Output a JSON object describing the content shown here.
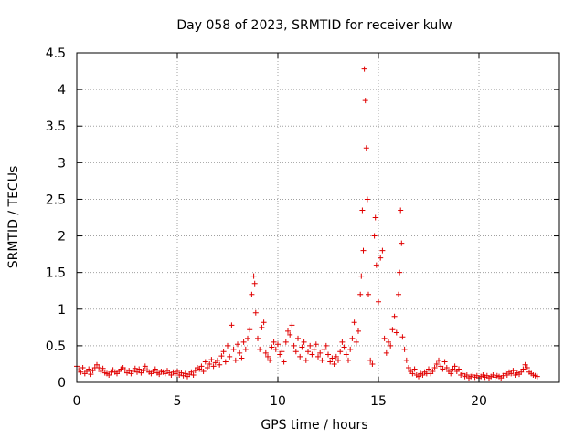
{
  "chart_data": {
    "type": "scatter",
    "title": "Day 058 of 2023, SRMTID for receiver kulw",
    "xlabel": "GPS time / hours",
    "ylabel": "SRMTID / TECUs",
    "xlim": [
      0,
      24
    ],
    "ylim": [
      0,
      4.5
    ],
    "xticks": [
      0,
      5,
      10,
      15,
      20
    ],
    "yticks": [
      0,
      0.5,
      1,
      1.5,
      2,
      2.5,
      3,
      3.5,
      4,
      4.5
    ],
    "grid": true,
    "marker": "+",
    "color": "#e00000",
    "series": [
      {
        "name": "kulw",
        "points": [
          [
            0.0,
            0.22
          ],
          [
            0.1,
            0.17
          ],
          [
            0.2,
            0.14
          ],
          [
            0.3,
            0.2
          ],
          [
            0.4,
            0.12
          ],
          [
            0.5,
            0.15
          ],
          [
            0.6,
            0.18
          ],
          [
            0.7,
            0.11
          ],
          [
            0.8,
            0.16
          ],
          [
            0.9,
            0.2
          ],
          [
            1.0,
            0.24
          ],
          [
            1.1,
            0.2
          ],
          [
            1.2,
            0.15
          ],
          [
            1.3,
            0.19
          ],
          [
            1.4,
            0.13
          ],
          [
            1.5,
            0.12
          ],
          [
            1.6,
            0.1
          ],
          [
            1.7,
            0.14
          ],
          [
            1.8,
            0.17
          ],
          [
            1.9,
            0.14
          ],
          [
            2.0,
            0.12
          ],
          [
            2.1,
            0.15
          ],
          [
            2.2,
            0.18
          ],
          [
            2.3,
            0.2
          ],
          [
            2.4,
            0.17
          ],
          [
            2.5,
            0.13
          ],
          [
            2.6,
            0.16
          ],
          [
            2.7,
            0.12
          ],
          [
            2.8,
            0.15
          ],
          [
            2.9,
            0.19
          ],
          [
            3.0,
            0.14
          ],
          [
            3.1,
            0.18
          ],
          [
            3.2,
            0.13
          ],
          [
            3.3,
            0.16
          ],
          [
            3.4,
            0.22
          ],
          [
            3.5,
            0.17
          ],
          [
            3.6,
            0.14
          ],
          [
            3.7,
            0.12
          ],
          [
            3.8,
            0.15
          ],
          [
            3.9,
            0.18
          ],
          [
            4.0,
            0.13
          ],
          [
            4.1,
            0.11
          ],
          [
            4.2,
            0.15
          ],
          [
            4.3,
            0.14
          ],
          [
            4.4,
            0.12
          ],
          [
            4.5,
            0.16
          ],
          [
            4.6,
            0.13
          ],
          [
            4.7,
            0.1
          ],
          [
            4.8,
            0.14
          ],
          [
            4.9,
            0.12
          ],
          [
            5.0,
            0.15
          ],
          [
            5.1,
            0.1
          ],
          [
            5.2,
            0.13
          ],
          [
            5.3,
            0.09
          ],
          [
            5.4,
            0.12
          ],
          [
            5.5,
            0.08
          ],
          [
            5.6,
            0.11
          ],
          [
            5.7,
            0.14
          ],
          [
            5.8,
            0.1
          ],
          [
            5.9,
            0.16
          ],
          [
            6.0,
            0.2
          ],
          [
            6.1,
            0.18
          ],
          [
            6.2,
            0.22
          ],
          [
            6.3,
            0.15
          ],
          [
            6.4,
            0.28
          ],
          [
            6.5,
            0.2
          ],
          [
            6.6,
            0.25
          ],
          [
            6.7,
            0.31
          ],
          [
            6.8,
            0.22
          ],
          [
            6.9,
            0.27
          ],
          [
            7.0,
            0.3
          ],
          [
            7.1,
            0.24
          ],
          [
            7.2,
            0.36
          ],
          [
            7.3,
            0.42
          ],
          [
            7.4,
            0.28
          ],
          [
            7.5,
            0.5
          ],
          [
            7.6,
            0.35
          ],
          [
            7.7,
            0.78
          ],
          [
            7.8,
            0.45
          ],
          [
            7.9,
            0.3
          ],
          [
            8.0,
            0.52
          ],
          [
            8.1,
            0.4
          ],
          [
            8.2,
            0.33
          ],
          [
            8.3,
            0.55
          ],
          [
            8.4,
            0.45
          ],
          [
            8.5,
            0.6
          ],
          [
            8.6,
            0.72
          ],
          [
            8.7,
            1.2
          ],
          [
            8.8,
            1.45
          ],
          [
            8.85,
            1.35
          ],
          [
            8.9,
            0.95
          ],
          [
            9.0,
            0.6
          ],
          [
            9.1,
            0.45
          ],
          [
            9.2,
            0.75
          ],
          [
            9.3,
            0.82
          ],
          [
            9.4,
            0.4
          ],
          [
            9.5,
            0.35
          ],
          [
            9.6,
            0.3
          ],
          [
            9.7,
            0.48
          ],
          [
            9.8,
            0.55
          ],
          [
            9.9,
            0.45
          ],
          [
            10.0,
            0.52
          ],
          [
            10.1,
            0.38
          ],
          [
            10.2,
            0.42
          ],
          [
            10.3,
            0.28
          ],
          [
            10.4,
            0.55
          ],
          [
            10.5,
            0.7
          ],
          [
            10.6,
            0.65
          ],
          [
            10.7,
            0.78
          ],
          [
            10.8,
            0.5
          ],
          [
            10.9,
            0.42
          ],
          [
            11.0,
            0.6
          ],
          [
            11.1,
            0.35
          ],
          [
            11.2,
            0.48
          ],
          [
            11.3,
            0.55
          ],
          [
            11.4,
            0.3
          ],
          [
            11.5,
            0.42
          ],
          [
            11.6,
            0.5
          ],
          [
            11.7,
            0.38
          ],
          [
            11.8,
            0.45
          ],
          [
            11.9,
            0.52
          ],
          [
            12.0,
            0.35
          ],
          [
            12.1,
            0.4
          ],
          [
            12.2,
            0.3
          ],
          [
            12.3,
            0.45
          ],
          [
            12.4,
            0.5
          ],
          [
            12.5,
            0.38
          ],
          [
            12.6,
            0.28
          ],
          [
            12.7,
            0.33
          ],
          [
            12.8,
            0.25
          ],
          [
            12.9,
            0.35
          ],
          [
            13.0,
            0.3
          ],
          [
            13.1,
            0.42
          ],
          [
            13.2,
            0.55
          ],
          [
            13.3,
            0.48
          ],
          [
            13.4,
            0.38
          ],
          [
            13.5,
            0.3
          ],
          [
            13.6,
            0.45
          ],
          [
            13.7,
            0.6
          ],
          [
            13.8,
            0.82
          ],
          [
            13.9,
            0.55
          ],
          [
            14.0,
            0.7
          ],
          [
            14.1,
            1.2
          ],
          [
            14.15,
            1.45
          ],
          [
            14.2,
            2.35
          ],
          [
            14.25,
            1.8
          ],
          [
            14.3,
            4.28
          ],
          [
            14.35,
            3.85
          ],
          [
            14.4,
            3.2
          ],
          [
            14.45,
            2.5
          ],
          [
            14.5,
            1.2
          ],
          [
            14.6,
            0.3
          ],
          [
            14.7,
            0.25
          ],
          [
            14.8,
            2.0
          ],
          [
            14.85,
            2.25
          ],
          [
            14.9,
            1.6
          ],
          [
            15.0,
            1.1
          ],
          [
            15.1,
            1.7
          ],
          [
            15.2,
            1.8
          ],
          [
            15.3,
            0.6
          ],
          [
            15.4,
            0.4
          ],
          [
            15.5,
            0.55
          ],
          [
            15.6,
            0.5
          ],
          [
            15.7,
            0.72
          ],
          [
            15.8,
            0.9
          ],
          [
            15.9,
            0.68
          ],
          [
            16.0,
            1.2
          ],
          [
            16.05,
            1.5
          ],
          [
            16.1,
            2.35
          ],
          [
            16.15,
            1.9
          ],
          [
            16.2,
            0.62
          ],
          [
            16.3,
            0.45
          ],
          [
            16.4,
            0.3
          ],
          [
            16.5,
            0.2
          ],
          [
            16.6,
            0.15
          ],
          [
            16.7,
            0.12
          ],
          [
            16.8,
            0.18
          ],
          [
            16.9,
            0.1
          ],
          [
            17.0,
            0.08
          ],
          [
            17.1,
            0.12
          ],
          [
            17.2,
            0.1
          ],
          [
            17.3,
            0.14
          ],
          [
            17.4,
            0.12
          ],
          [
            17.5,
            0.18
          ],
          [
            17.6,
            0.12
          ],
          [
            17.7,
            0.15
          ],
          [
            17.8,
            0.2
          ],
          [
            17.9,
            0.25
          ],
          [
            18.0,
            0.3
          ],
          [
            18.1,
            0.22
          ],
          [
            18.2,
            0.18
          ],
          [
            18.3,
            0.28
          ],
          [
            18.4,
            0.2
          ],
          [
            18.5,
            0.15
          ],
          [
            18.6,
            0.12
          ],
          [
            18.7,
            0.18
          ],
          [
            18.8,
            0.22
          ],
          [
            18.9,
            0.15
          ],
          [
            19.0,
            0.18
          ],
          [
            19.1,
            0.1
          ],
          [
            19.2,
            0.12
          ],
          [
            19.3,
            0.08
          ],
          [
            19.4,
            0.1
          ],
          [
            19.5,
            0.06
          ],
          [
            19.6,
            0.08
          ],
          [
            19.7,
            0.1
          ],
          [
            19.8,
            0.07
          ],
          [
            19.9,
            0.09
          ],
          [
            20.0,
            0.06
          ],
          [
            20.1,
            0.08
          ],
          [
            20.2,
            0.1
          ],
          [
            20.3,
            0.07
          ],
          [
            20.4,
            0.09
          ],
          [
            20.5,
            0.06
          ],
          [
            20.6,
            0.08
          ],
          [
            20.7,
            0.1
          ],
          [
            20.8,
            0.07
          ],
          [
            20.9,
            0.09
          ],
          [
            21.0,
            0.08
          ],
          [
            21.1,
            0.06
          ],
          [
            21.2,
            0.09
          ],
          [
            21.3,
            0.12
          ],
          [
            21.4,
            0.1
          ],
          [
            21.5,
            0.14
          ],
          [
            21.6,
            0.12
          ],
          [
            21.7,
            0.16
          ],
          [
            21.8,
            0.1
          ],
          [
            21.9,
            0.13
          ],
          [
            22.0,
            0.11
          ],
          [
            22.1,
            0.14
          ],
          [
            22.2,
            0.18
          ],
          [
            22.3,
            0.24
          ],
          [
            22.4,
            0.2
          ],
          [
            22.5,
            0.14
          ],
          [
            22.6,
            0.12
          ],
          [
            22.7,
            0.1
          ],
          [
            22.8,
            0.09
          ],
          [
            22.9,
            0.08
          ]
        ]
      }
    ]
  }
}
